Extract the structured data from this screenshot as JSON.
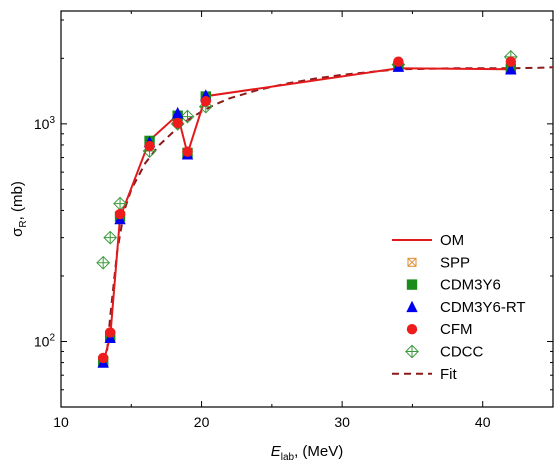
{
  "chart_data": {
    "type": "scatter",
    "xlabel": {
      "main": "E",
      "sub": "lab",
      "rest": ", (MeV)"
    },
    "ylabel": {
      "main": "σ",
      "sub": "R",
      "rest": ", (mb)"
    },
    "xlim": [
      10,
      45
    ],
    "ylim": [
      50,
      3300
    ],
    "yscale": "log",
    "x_ticks": [
      10,
      20,
      30,
      40
    ],
    "y_ticks": [
      {
        "value": 100,
        "base": "10",
        "exp": "2"
      },
      {
        "value": 1000,
        "base": "10",
        "exp": "3"
      }
    ],
    "legend_position": "lower-right",
    "series": [
      {
        "name": "OM",
        "style": "line",
        "color": "#e31a1c",
        "x": [
          13.0,
          13.5,
          14.2,
          16.3,
          18.3,
          19.0,
          20.3,
          34.0,
          42.0
        ],
        "y": [
          80,
          105,
          370,
          840,
          1100,
          730,
          1340,
          1800,
          1780
        ]
      },
      {
        "name": "SPP",
        "style": "marker",
        "marker": "boxx",
        "color": "#e08a2c",
        "x": [
          13.0,
          13.5,
          14.2,
          16.3,
          18.3,
          19.0,
          20.3,
          34.0,
          42.0
        ],
        "y": [
          82,
          108,
          380,
          830,
          1080,
          740,
          1330,
          1850,
          1800
        ]
      },
      {
        "name": "CDM3Y6",
        "style": "marker",
        "marker": "square",
        "color": "#1a8c1a",
        "x": [
          13.0,
          13.5,
          14.2,
          16.3,
          18.3,
          19.0,
          20.3,
          34.0,
          42.0
        ],
        "y": [
          81,
          106,
          375,
          835,
          1090,
          735,
          1335,
          1840,
          1790
        ]
      },
      {
        "name": "CDM3Y6-RT",
        "style": "marker",
        "marker": "triangle",
        "color": "#0000ee",
        "x": [
          13.0,
          13.5,
          14.2,
          16.3,
          18.3,
          19.0,
          20.3,
          34.0,
          42.0
        ],
        "y": [
          80,
          104,
          365,
          825,
          1120,
          725,
          1350,
          1830,
          1780
        ]
      },
      {
        "name": "CFM",
        "style": "marker",
        "marker": "circle",
        "color": "#ee1c1c",
        "x": [
          13.0,
          13.5,
          14.2,
          16.3,
          18.3,
          19.0,
          20.3,
          34.0,
          42.0
        ],
        "y": [
          84,
          110,
          385,
          790,
          1010,
          745,
          1270,
          1930,
          1930
        ]
      },
      {
        "name": "CDCC",
        "style": "marker",
        "marker": "diamondcross",
        "color": "#3a9a3a",
        "x": [
          13.0,
          13.5,
          14.2,
          16.3,
          18.3,
          19.0,
          20.3,
          34.0,
          42.0
        ],
        "y": [
          230,
          300,
          430,
          750,
          1000,
          1080,
          1200,
          1870,
          2030
        ]
      },
      {
        "name": "Fit",
        "style": "dash",
        "color": "#8b1a1a",
        "x": [
          13.2,
          13.5,
          14.0,
          14.5,
          15.0,
          16.0,
          17.0,
          18.0,
          19.0,
          20.0,
          21.0,
          22.0,
          24.0,
          26.0,
          28.0,
          30.0,
          32.0,
          34.0,
          36.0,
          38.0,
          40.0,
          42.0,
          44.0,
          45.0
        ],
        "y": [
          80,
          130,
          260,
          400,
          500,
          660,
          800,
          920,
          1040,
          1140,
          1230,
          1310,
          1430,
          1530,
          1610,
          1680,
          1730,
          1780,
          1790,
          1800,
          1800,
          1800,
          1810,
          1820
        ]
      }
    ]
  }
}
